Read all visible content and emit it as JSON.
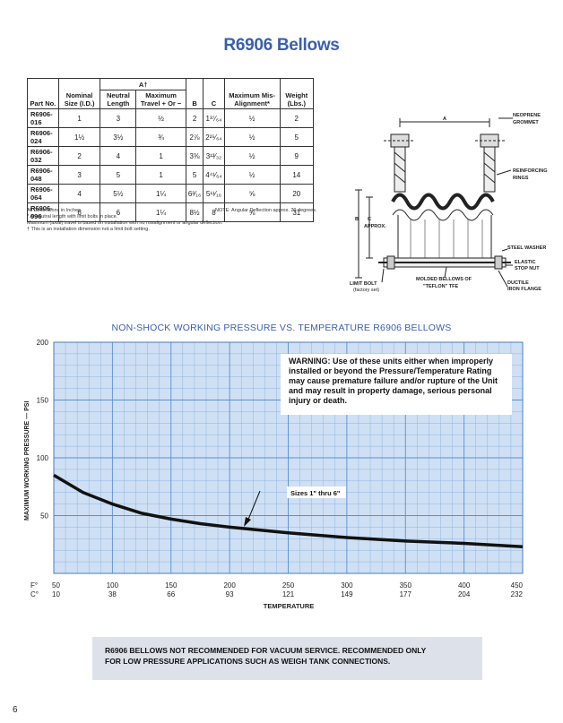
{
  "title": "R6906 Bellows",
  "table": {
    "group_header": "A†",
    "headers": [
      "Part No.",
      "Nominal Size (I.D.)",
      "Neutral Length",
      "Maximum Travel + Or −",
      "B",
      "C",
      "Maximum Mis-Alignment*",
      "Weight (Lbs.)"
    ],
    "rows": [
      [
        "R6906-016",
        "1",
        "3",
        "½",
        "2",
        "1³⁷⁄₆₄",
        "½",
        "2"
      ],
      [
        "R6906-024",
        "1½",
        "3½",
        "¾",
        "2⅞",
        "2²⁵⁄₆₄",
        "½",
        "5"
      ],
      [
        "R6906-032",
        "2",
        "4",
        "1",
        "3⅜",
        "3¹³⁄₃₂",
        "½",
        "9"
      ],
      [
        "R6906-048",
        "3",
        "5",
        "1",
        "5",
        "4⁴¹⁄₆₄",
        "½",
        "14"
      ],
      [
        "R6906-064",
        "4",
        "5½",
        "1¼",
        "6³⁄₁₆",
        "5¹¹⁄₁₆",
        "⅝",
        "20"
      ],
      [
        "R6906-096",
        "6",
        "6",
        "1¼",
        "8½",
        "8",
        "⅝",
        "31"
      ]
    ]
  },
  "notes": {
    "line1": "All Dimensions in Inches.",
    "line2": "* At neutral length with limit bolts in place.",
    "line3": "Maximum (axial) travel is based on installation with no misalignment or angular deflection.",
    "line4": "† This is an installation dimension not a limit bolt setting.",
    "angular": "NOTE: Angular Deflection approx. 20 degrees."
  },
  "diagram_labels": {
    "a": "A",
    "neoprene": "NEOPRENE",
    "grommet": "GROMMET",
    "reinforcing": "REINFORCING",
    "rings": "RINGS",
    "b": "B",
    "c": "C",
    "approx": "APPROX.",
    "steel_washer": "STEEL WASHER",
    "elastic": "ELASTIC",
    "stop_nut": "STOP NUT",
    "limit_bolt": "LIMIT BOLT",
    "factory_set": "(factory set)",
    "molded1": "MOLDED BELLOWS OF",
    "molded2": "\"TEFLON\" TFE",
    "ductile": "DUCTILE",
    "iron_flange": "IRON FLANGE"
  },
  "chart_data": {
    "type": "line",
    "title": "NON-SHOCK WORKING PRESSURE VS. TEMPERATURE R6906 BELLOWS",
    "xlabel": "TEMPERATURE",
    "ylabel": "MAXIMUM WORKING PRESSURE — PSI",
    "xlim": [
      50,
      450
    ],
    "ylim": [
      0,
      200
    ],
    "x_ticks_f": [
      "50",
      "100",
      "150",
      "200",
      "250",
      "300",
      "350",
      "400",
      "450"
    ],
    "x_ticks_c": [
      "10",
      "38",
      "66",
      "93",
      "121",
      "149",
      "177",
      "204",
      "232"
    ],
    "y_ticks": [
      "200",
      "150",
      "100",
      "50"
    ],
    "x_axis_label_f": "F°",
    "x_axis_label_c": "C°",
    "series": [
      {
        "name": "Sizes 1\" thru 6\"",
        "x": [
          50,
          75,
          100,
          125,
          150,
          175,
          200,
          250,
          300,
          350,
          400,
          450
        ],
        "y": [
          85,
          70,
          60,
          52,
          47,
          43,
          40,
          35,
          31,
          28,
          26,
          23
        ]
      }
    ],
    "grid": true,
    "warning_text": "WARNING: Use of these units either when improperly installed or beyond the Pressure/Temperature Rating may cause premature failure and/or rupture of the Unit and may result in property damage, serious personal injury or death."
  },
  "footer_warning": {
    "line1": "R6906 BELLOWS NOT RECOMMENDED FOR VACUUM SERVICE. RECOMMENDED ONLY",
    "line2": "FOR LOW PRESSURE APPLICATIONS SUCH AS WEIGH TANK CONNECTIONS."
  },
  "page_number": "6"
}
